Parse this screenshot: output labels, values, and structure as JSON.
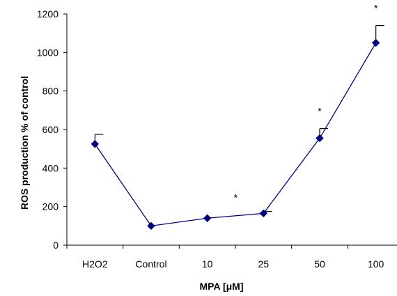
{
  "chart_data": {
    "type": "line",
    "title": "",
    "xlabel": "MPA [μM]",
    "ylabel": "ROS production % of control",
    "categories": [
      "H2O2",
      "Control",
      "10",
      "25",
      "50",
      "100"
    ],
    "series": [
      {
        "values": [
          525,
          100,
          140,
          165,
          555,
          1050
        ],
        "error_upper": [
          50,
          0,
          0,
          10,
          50,
          90
        ],
        "significance": [
          "",
          "",
          "",
          "*",
          "*",
          "*"
        ],
        "connected_from_category": 0
      }
    ],
    "ylim": [
      0,
      1200
    ],
    "yticks": [
      0,
      200,
      400,
      600,
      800,
      1000,
      1200
    ],
    "grid": false,
    "legend": "none",
    "colors": {
      "line": "#000080",
      "marker": "#000080",
      "axis": "#000000",
      "errorbar": "#000000"
    }
  }
}
